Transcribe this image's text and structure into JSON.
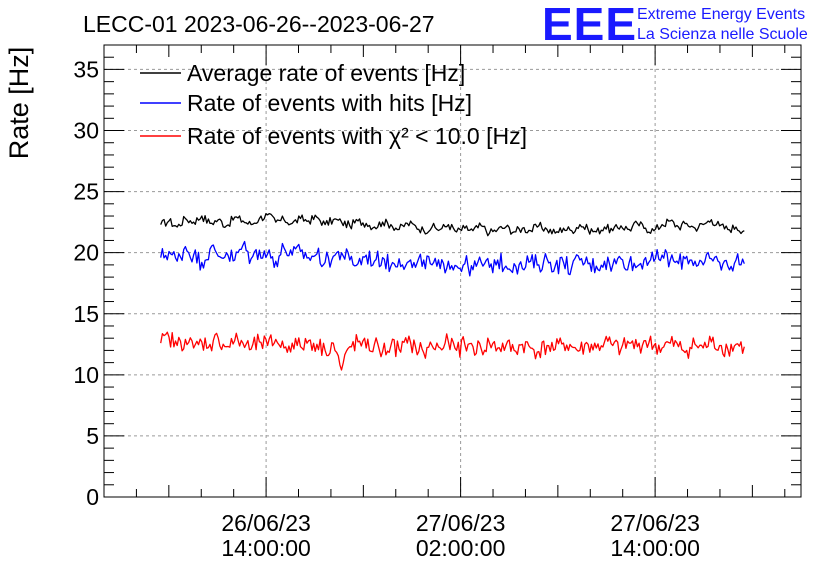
{
  "header": {
    "title": "LECC-01 2023-06-26--2023-06-27",
    "logo_text": "EEE",
    "logo_line1": "Extreme Energy Events",
    "logo_line2": "La Scienza nelle Scuole"
  },
  "chart_data": {
    "type": "line",
    "title": "LECC-01 2023-06-26--2023-06-27",
    "ylabel": "Rate [Hz]",
    "xlabel": "",
    "ylim": [
      0,
      37
    ],
    "xlim": [
      "2023-06-26T04:00:00",
      "2023-06-27T23:00:00"
    ],
    "grid": true,
    "legend_position": "top-left",
    "yticks": [
      "0",
      "5",
      "10",
      "15",
      "20",
      "25",
      "30",
      "35"
    ],
    "xticks": [
      {
        "time": "2023-06-26T14:00:00",
        "line1": "26/06/23",
        "line2": "14:00:00"
      },
      {
        "time": "2023-06-27T02:00:00",
        "line1": "27/06/23",
        "line2": "02:00:00"
      },
      {
        "time": "2023-06-27T14:00:00",
        "line1": "27/06/23",
        "line2": "14:00:00"
      }
    ],
    "series": [
      {
        "name": "Average rate of events [Hz]",
        "color": "#000000",
        "x_start": "2023-06-26T07:30:00",
        "x_end": "2023-06-27T19:30:00",
        "values": [
          22.3,
          22.6,
          22.1,
          22.8,
          22.5,
          23.0,
          22.4,
          22.7,
          22.2,
          22.9,
          22.6,
          22.3,
          22.8,
          23.1,
          22.5,
          22.7,
          22.4,
          22.8,
          22.6,
          22.9,
          22.3,
          22.7,
          22.5,
          22.2,
          22.6,
          22.4,
          22.1,
          22.5,
          22.3,
          21.9,
          22.4,
          22.2,
          21.8,
          22.1,
          21.9,
          22.3,
          21.7,
          22.0,
          21.8,
          22.2,
          21.6,
          21.9,
          22.1,
          21.7,
          22.0,
          21.8,
          22.2,
          21.9,
          21.6,
          22.0,
          21.8,
          22.3,
          21.9,
          21.7,
          22.1,
          21.8,
          22.2,
          21.9,
          22.4,
          22.0,
          21.8,
          22.3,
          22.6,
          22.1,
          22.4,
          22.0,
          22.3,
          22.7,
          22.2,
          21.9,
          22.1,
          21.8
        ]
      },
      {
        "name": "Rate of events with hits [Hz]",
        "color": "#0000ff",
        "x_start": "2023-06-26T07:30:00",
        "x_end": "2023-06-27T19:30:00",
        "values": [
          19.6,
          20.1,
          19.3,
          20.5,
          19.8,
          19.2,
          20.3,
          19.7,
          20.0,
          19.4,
          20.6,
          19.5,
          20.2,
          19.9,
          19.3,
          20.4,
          19.8,
          20.1,
          19.6,
          19.9,
          19.2,
          19.7,
          20.0,
          19.4,
          19.1,
          19.8,
          19.3,
          19.6,
          18.9,
          19.5,
          19.2,
          18.8,
          19.4,
          19.0,
          18.7,
          19.3,
          18.9,
          19.1,
          18.6,
          19.2,
          18.8,
          19.4,
          18.9,
          19.1,
          18.7,
          19.3,
          19.0,
          19.5,
          18.9,
          19.2,
          18.8,
          19.4,
          19.1,
          18.9,
          19.3,
          19.0,
          19.5,
          19.2,
          18.9,
          19.6,
          19.3,
          19.8,
          19.4,
          19.1,
          19.7,
          19.3,
          19.0,
          19.5,
          19.2,
          18.9,
          19.4,
          19.1
        ]
      },
      {
        "name": "Rate of events with χ² < 10.0 [Hz]",
        "color": "#ff0000",
        "x_start": "2023-06-26T07:30:00",
        "x_end": "2023-06-27T19:30:00",
        "values": [
          12.6,
          13.1,
          12.4,
          12.9,
          12.2,
          12.7,
          12.5,
          13.0,
          12.3,
          12.8,
          12.6,
          12.1,
          12.7,
          12.4,
          12.9,
          12.2,
          12.6,
          12.3,
          12.8,
          12.5,
          12.0,
          12.6,
          10.4,
          12.3,
          12.7,
          12.2,
          12.5,
          11.9,
          12.4,
          12.1,
          12.6,
          12.3,
          11.8,
          12.4,
          12.2,
          12.7,
          12.0,
          12.5,
          12.3,
          12.1,
          12.6,
          12.2,
          12.4,
          12.0,
          12.5,
          12.2,
          11.9,
          12.4,
          12.1,
          12.6,
          12.3,
          12.0,
          12.5,
          12.2,
          12.7,
          12.4,
          12.1,
          12.6,
          12.3,
          12.8,
          12.4,
          12.2,
          12.6,
          12.3,
          12.0,
          12.5,
          12.2,
          12.7,
          12.4,
          12.1,
          12.5,
          12.3
        ]
      }
    ]
  }
}
